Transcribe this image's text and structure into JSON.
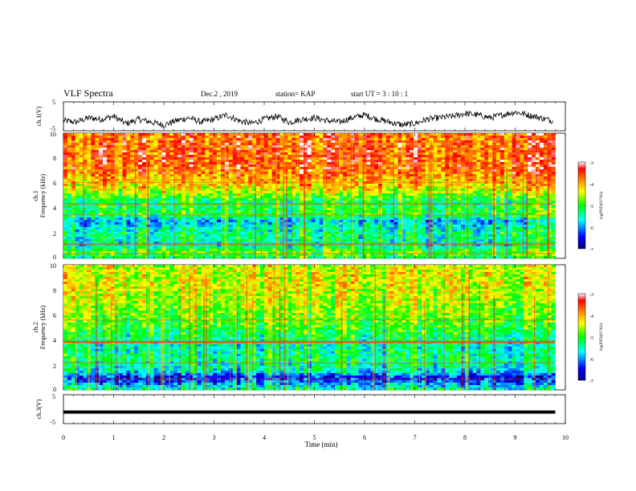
{
  "header": {
    "title": "VLF Spectra",
    "date": "Dec.2  , 2019",
    "station": "station= KAP",
    "start_ut": "start  UT  =   3  : 10 : 1"
  },
  "chart_data": [
    {
      "type": "line",
      "panel": "ch1-waveform",
      "ylabel": "ch.1(V)",
      "ylim": [
        -5,
        5
      ],
      "yticks": [
        "5",
        "-5"
      ],
      "xlim": [
        0,
        10
      ],
      "x": [
        0,
        0.25,
        0.5,
        0.75,
        1,
        1.25,
        1.5,
        1.75,
        2,
        2.25,
        2.5,
        2.75,
        3,
        3.25,
        3.5,
        3.75,
        4,
        4.25,
        4.5,
        4.75,
        5,
        5.25,
        5.5,
        5.75,
        6,
        6.25,
        6.5,
        6.75,
        7,
        7.25,
        7.5,
        7.75,
        8,
        8.25,
        8.5,
        8.75,
        9,
        9.25,
        9.5,
        9.75
      ],
      "values": [
        -1.5,
        -2,
        -0.5,
        -1,
        0,
        -2.5,
        -1,
        -2,
        -3,
        -1.5,
        -0.5,
        -2,
        -1,
        0.5,
        -1.5,
        -2.5,
        -1,
        0,
        -2,
        -1,
        -0.5,
        -1.5,
        -2,
        -0.5,
        0.5,
        -1,
        -2,
        -3,
        -2.5,
        -1,
        -0.5,
        0,
        1,
        0.5,
        -0.5,
        0.5,
        1.5,
        0.5,
        -0.5,
        -1.5
      ],
      "line_color": "#000000"
    },
    {
      "type": "heatmap",
      "panel": "ch1-spectrogram",
      "ylabel_line1": "ch.1",
      "ylabel_line2": "Frequency (kHz)",
      "ylim": [
        0,
        10
      ],
      "yticks": [
        "0",
        "2",
        "4",
        "6",
        "8",
        "10"
      ],
      "xlim": [
        0,
        10
      ],
      "colorbar": {
        "label": "log(PSD)(V²/Hz)",
        "range": [
          -7,
          -3
        ],
        "ticks": [
          "-3",
          "-4",
          "-5",
          "-6",
          "-7"
        ]
      },
      "band_profile_log_psd": [
        {
          "freq": 0,
          "value": -5.2
        },
        {
          "freq": 0.5,
          "value": -4.8
        },
        {
          "freq": 1,
          "value": -5.4
        },
        {
          "freq": 2,
          "value": -5.3
        },
        {
          "freq": 3,
          "value": -5.8
        },
        {
          "freq": 3.5,
          "value": -5.0
        },
        {
          "freq": 4.5,
          "value": -5.2
        },
        {
          "freq": 5.5,
          "value": -4.3
        },
        {
          "freq": 7,
          "value": -3.7
        },
        {
          "freq": 8.5,
          "value": -3.6
        },
        {
          "freq": 10,
          "value": -3.7
        }
      ]
    },
    {
      "type": "heatmap",
      "panel": "ch2-spectrogram",
      "ylabel_line1": "ch.2",
      "ylabel_line2": "Frequency (kHz)",
      "ylim": [
        0,
        10
      ],
      "yticks": [
        "0",
        "2",
        "4",
        "6",
        "8",
        "10"
      ],
      "xlim": [
        0,
        10
      ],
      "colorbar": {
        "label": "log(PSD)(V²/Hz)",
        "range": [
          -7,
          -3
        ],
        "ticks": [
          "-3",
          "-4",
          "-5",
          "-6",
          "-7"
        ]
      },
      "band_profile_log_psd": [
        {
          "freq": 0,
          "value": -5.3
        },
        {
          "freq": 0.5,
          "value": -6.0
        },
        {
          "freq": 1,
          "value": -6.5
        },
        {
          "freq": 1.5,
          "value": -5.6
        },
        {
          "freq": 2.5,
          "value": -5.3
        },
        {
          "freq": 3.5,
          "value": -5.5
        },
        {
          "freq": 5,
          "value": -5.0
        },
        {
          "freq": 7,
          "value": -4.6
        },
        {
          "freq": 8.5,
          "value": -4.4
        },
        {
          "freq": 10,
          "value": -4.5
        }
      ]
    },
    {
      "type": "line",
      "panel": "ch3-waveform",
      "ylabel": "ch.3(V)",
      "ylim": [
        -5,
        5
      ],
      "yticks": [
        "5",
        "-5"
      ],
      "xlim": [
        0,
        10
      ],
      "x": [
        0,
        9.8
      ],
      "values": [
        -1,
        -1
      ],
      "line_color": "#000000"
    }
  ],
  "x_axis": {
    "label": "Time  (min)",
    "ticks": [
      "0",
      "1",
      "2",
      "3",
      "4",
      "5",
      "6",
      "7",
      "8",
      "9",
      "10"
    ]
  },
  "colors": {
    "jet": [
      "#00007f",
      "#0000ff",
      "#00ffff",
      "#00ff00",
      "#ffff00",
      "#ff7f00",
      "#ff0000",
      "#ffffff"
    ]
  }
}
